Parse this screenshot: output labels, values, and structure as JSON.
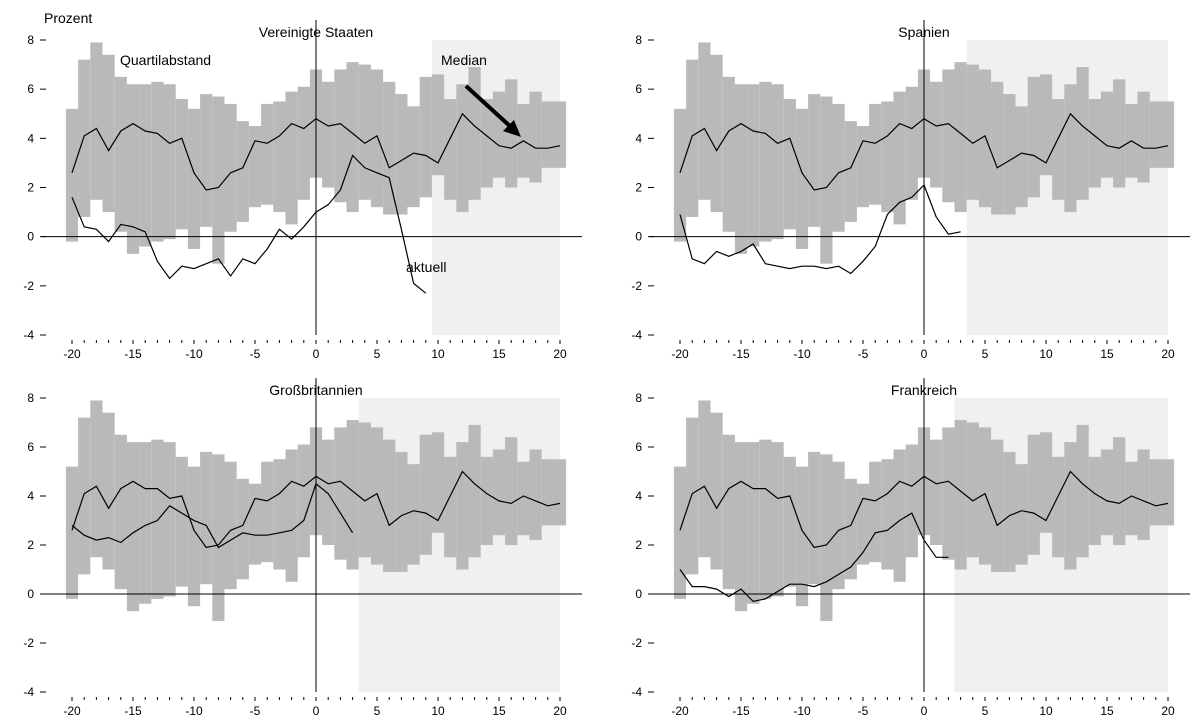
{
  "ylabel": "Prozent",
  "annotations": {
    "quartile": "Quartilabstand",
    "median": "Median",
    "current": "aktuell"
  },
  "colors": {
    "band": "#b9b9b9",
    "shade": "#f0f0f0",
    "line": "#000000"
  },
  "chart_data": [
    {
      "type": "line",
      "title": "Vereinigte Staaten",
      "xlim": [
        -20,
        20
      ],
      "ylim": [
        -4,
        8
      ],
      "x_ticks": [
        -20,
        -15,
        -10,
        -5,
        0,
        5,
        10,
        15,
        20
      ],
      "y_ticks": [
        -4,
        -2,
        0,
        2,
        4,
        6,
        8
      ],
      "shaded_from": 9.5,
      "band_x": [
        -20,
        -19,
        -18,
        -17,
        -16,
        -15,
        -14,
        -13,
        -12,
        -11,
        -10,
        -9,
        -8,
        -7,
        -6,
        -5,
        -4,
        -3,
        -2,
        -1,
        0,
        1,
        2,
        3,
        4,
        5,
        6,
        7,
        8,
        9,
        10,
        11,
        12,
        13,
        14,
        15,
        16,
        17,
        18,
        19,
        20
      ],
      "band_lower": [
        -0.2,
        0.8,
        1.5,
        1.0,
        0.2,
        -0.7,
        -0.4,
        -0.2,
        -0.1,
        0.3,
        -0.5,
        0.4,
        -1.1,
        0.2,
        0.6,
        1.2,
        1.3,
        1.0,
        0.5,
        1.5,
        2.4,
        2.0,
        1.4,
        1.0,
        1.5,
        1.2,
        0.9,
        0.9,
        1.2,
        1.6,
        2.5,
        1.5,
        1.0,
        1.5,
        2.0,
        2.4,
        2.0,
        2.4,
        2.2,
        2.8,
        2.8
      ],
      "band_upper": [
        5.2,
        7.2,
        7.9,
        7.4,
        6.5,
        6.2,
        6.2,
        6.3,
        6.2,
        5.6,
        5.2,
        5.8,
        5.7,
        5.4,
        4.7,
        4.5,
        5.4,
        5.5,
        5.9,
        6.1,
        6.8,
        6.3,
        6.8,
        7.1,
        7.0,
        6.8,
        6.3,
        5.8,
        5.3,
        6.5,
        6.6,
        5.6,
        6.2,
        6.9,
        5.6,
        5.9,
        6.4,
        5.4,
        5.9,
        5.5,
        5.5
      ],
      "series": [
        {
          "name": "Median",
          "x": [
            -20,
            -19,
            -18,
            -17,
            -16,
            -15,
            -14,
            -13,
            -12,
            -11,
            -10,
            -9,
            -8,
            -7,
            -6,
            -5,
            -4,
            -3,
            -2,
            -1,
            0,
            1,
            2,
            3,
            4,
            5,
            6,
            7,
            8,
            9,
            10,
            11,
            12,
            13,
            14,
            15,
            16,
            17,
            18,
            19,
            20
          ],
          "y": [
            2.6,
            4.1,
            4.4,
            3.5,
            4.3,
            4.6,
            4.3,
            4.2,
            3.8,
            4.0,
            2.6,
            1.9,
            2.0,
            2.6,
            2.8,
            3.9,
            3.8,
            4.1,
            4.6,
            4.4,
            4.8,
            4.5,
            4.6,
            4.2,
            3.8,
            4.1,
            2.8,
            3.1,
            3.4,
            3.3,
            3.0,
            4.0,
            5.0,
            4.5,
            4.1,
            3.7,
            3.6,
            3.9,
            3.6,
            3.6,
            3.7
          ]
        },
        {
          "name": "aktuell",
          "x": [
            -20,
            -19,
            -18,
            -17,
            -16,
            -15,
            -14,
            -13,
            -12,
            -11,
            -10,
            -9,
            -8,
            -7,
            -6,
            -5,
            -4,
            -3,
            -2,
            -1,
            0,
            1,
            2,
            3,
            4,
            5,
            6,
            7,
            8,
            9
          ],
          "y": [
            1.6,
            0.4,
            0.3,
            -0.2,
            0.5,
            0.4,
            0.2,
            -1.0,
            -1.7,
            -1.2,
            -1.3,
            -1.1,
            -0.9,
            -1.6,
            -0.9,
            -1.1,
            -0.5,
            0.3,
            -0.1,
            0.4,
            1.0,
            1.3,
            1.9,
            3.3,
            2.8,
            2.6,
            2.4,
            0.3,
            -1.9,
            -2.3
          ]
        }
      ]
    },
    {
      "type": "line",
      "title": "Spanien",
      "xlim": [
        -20,
        20
      ],
      "ylim": [
        -4,
        8
      ],
      "x_ticks": [
        -20,
        -15,
        -10,
        -5,
        0,
        5,
        10,
        15,
        20
      ],
      "y_ticks": [
        -4,
        -2,
        0,
        2,
        4,
        6,
        8
      ],
      "shaded_from": 3.5,
      "band_x": [
        -20,
        -19,
        -18,
        -17,
        -16,
        -15,
        -14,
        -13,
        -12,
        -11,
        -10,
        -9,
        -8,
        -7,
        -6,
        -5,
        -4,
        -3,
        -2,
        -1,
        0,
        1,
        2,
        3,
        4,
        5,
        6,
        7,
        8,
        9,
        10,
        11,
        12,
        13,
        14,
        15,
        16,
        17,
        18,
        19,
        20
      ],
      "band_lower": [
        -0.2,
        0.8,
        1.5,
        1.0,
        0.2,
        -0.7,
        -0.4,
        -0.2,
        -0.1,
        0.3,
        -0.5,
        0.4,
        -1.1,
        0.2,
        0.6,
        1.2,
        1.3,
        1.0,
        0.5,
        1.5,
        2.4,
        2.0,
        1.4,
        1.0,
        1.5,
        1.2,
        0.9,
        0.9,
        1.2,
        1.6,
        2.5,
        1.5,
        1.0,
        1.5,
        2.0,
        2.4,
        2.0,
        2.4,
        2.2,
        2.8,
        2.8
      ],
      "band_upper": [
        5.2,
        7.2,
        7.9,
        7.4,
        6.5,
        6.2,
        6.2,
        6.3,
        6.2,
        5.6,
        5.2,
        5.8,
        5.7,
        5.4,
        4.7,
        4.5,
        5.4,
        5.5,
        5.9,
        6.1,
        6.8,
        6.3,
        6.8,
        7.1,
        7.0,
        6.8,
        6.3,
        5.8,
        5.3,
        6.5,
        6.6,
        5.6,
        6.2,
        6.9,
        5.6,
        5.9,
        6.4,
        5.4,
        5.9,
        5.5,
        5.5
      ],
      "series": [
        {
          "name": "Median",
          "x": [
            -20,
            -19,
            -18,
            -17,
            -16,
            -15,
            -14,
            -13,
            -12,
            -11,
            -10,
            -9,
            -8,
            -7,
            -6,
            -5,
            -4,
            -3,
            -2,
            -1,
            0,
            1,
            2,
            3,
            4,
            5,
            6,
            7,
            8,
            9,
            10,
            11,
            12,
            13,
            14,
            15,
            16,
            17,
            18,
            19,
            20
          ],
          "y": [
            2.6,
            4.1,
            4.4,
            3.5,
            4.3,
            4.6,
            4.3,
            4.2,
            3.8,
            4.0,
            2.6,
            1.9,
            2.0,
            2.6,
            2.8,
            3.9,
            3.8,
            4.1,
            4.6,
            4.4,
            4.8,
            4.5,
            4.6,
            4.2,
            3.8,
            4.1,
            2.8,
            3.1,
            3.4,
            3.3,
            3.0,
            4.0,
            5.0,
            4.5,
            4.1,
            3.7,
            3.6,
            3.9,
            3.6,
            3.6,
            3.7
          ]
        },
        {
          "name": "aktuell",
          "x": [
            -20,
            -19,
            -18,
            -17,
            -16,
            -15,
            -14,
            -13,
            -12,
            -11,
            -10,
            -9,
            -8,
            -7,
            -6,
            -5,
            -4,
            -3,
            -2,
            -1,
            0,
            1,
            2,
            3
          ],
          "y": [
            0.9,
            -0.9,
            -1.1,
            -0.6,
            -0.8,
            -0.6,
            -0.3,
            -1.1,
            -1.2,
            -1.3,
            -1.2,
            -1.2,
            -1.3,
            -1.2,
            -1.5,
            -1.0,
            -0.4,
            0.9,
            1.4,
            1.6,
            2.1,
            0.8,
            0.1,
            0.2
          ]
        }
      ]
    },
    {
      "type": "line",
      "title": "Großbritannien",
      "xlim": [
        -20,
        20
      ],
      "ylim": [
        -4,
        8
      ],
      "x_ticks": [
        -20,
        -15,
        -10,
        -5,
        0,
        5,
        10,
        15,
        20
      ],
      "y_ticks": [
        -4,
        -2,
        0,
        2,
        4,
        6,
        8
      ],
      "shaded_from": 3.5,
      "band_x": [
        -20,
        -19,
        -18,
        -17,
        -16,
        -15,
        -14,
        -13,
        -12,
        -11,
        -10,
        -9,
        -8,
        -7,
        -6,
        -5,
        -4,
        -3,
        -2,
        -1,
        0,
        1,
        2,
        3,
        4,
        5,
        6,
        7,
        8,
        9,
        10,
        11,
        12,
        13,
        14,
        15,
        16,
        17,
        18,
        19,
        20
      ],
      "band_lower": [
        -0.2,
        0.8,
        1.5,
        1.0,
        0.2,
        -0.7,
        -0.4,
        -0.2,
        -0.1,
        0.3,
        -0.5,
        0.4,
        -1.1,
        0.2,
        0.6,
        1.2,
        1.3,
        1.0,
        0.5,
        1.5,
        2.4,
        2.0,
        1.4,
        1.0,
        1.5,
        1.2,
        0.9,
        0.9,
        1.2,
        1.6,
        2.5,
        1.5,
        1.0,
        1.5,
        2.0,
        2.4,
        2.0,
        2.4,
        2.2,
        2.8,
        2.8
      ],
      "band_upper": [
        5.2,
        7.2,
        7.9,
        7.4,
        6.5,
        6.2,
        6.2,
        6.3,
        6.2,
        5.6,
        5.2,
        5.8,
        5.7,
        5.4,
        4.7,
        4.5,
        5.4,
        5.5,
        5.9,
        6.1,
        6.8,
        6.3,
        6.8,
        7.1,
        7.0,
        6.8,
        6.3,
        5.8,
        5.3,
        6.5,
        6.6,
        5.6,
        6.2,
        6.9,
        5.6,
        5.9,
        6.4,
        5.4,
        5.9,
        5.5,
        5.5
      ],
      "series": [
        {
          "name": "Median",
          "x": [
            -20,
            -19,
            -18,
            -17,
            -16,
            -15,
            -14,
            -13,
            -12,
            -11,
            -10,
            -9,
            -8,
            -7,
            -6,
            -5,
            -4,
            -3,
            -2,
            -1,
            0,
            1,
            2,
            3,
            4,
            5,
            6,
            7,
            8,
            9,
            10,
            11,
            12,
            13,
            14,
            15,
            16,
            17,
            18,
            19,
            20
          ],
          "y": [
            2.6,
            4.1,
            4.4,
            3.5,
            4.3,
            4.6,
            4.3,
            4.3,
            3.9,
            4.0,
            2.6,
            1.9,
            2.0,
            2.6,
            2.8,
            3.9,
            3.8,
            4.1,
            4.6,
            4.4,
            4.8,
            4.5,
            4.6,
            4.2,
            3.8,
            4.1,
            2.8,
            3.2,
            3.4,
            3.3,
            3.0,
            4.0,
            5.0,
            4.5,
            4.1,
            3.8,
            3.7,
            4.0,
            3.8,
            3.6,
            3.7
          ]
        },
        {
          "name": "aktuell",
          "x": [
            -20,
            -19,
            -18,
            -17,
            -16,
            -15,
            -14,
            -13,
            -12,
            -11,
            -10,
            -9,
            -8,
            -7,
            -6,
            -5,
            -4,
            -3,
            -2,
            -1,
            0,
            1,
            2,
            3
          ],
          "y": [
            2.8,
            2.4,
            2.2,
            2.3,
            2.1,
            2.5,
            2.8,
            3.0,
            3.6,
            3.3,
            3.0,
            2.8,
            1.9,
            2.2,
            2.5,
            2.4,
            2.4,
            2.5,
            2.6,
            3.0,
            4.5,
            4.1,
            3.3,
            2.5
          ]
        }
      ]
    },
    {
      "type": "line",
      "title": "Frankreich",
      "xlim": [
        -20,
        20
      ],
      "ylim": [
        -4,
        8
      ],
      "x_ticks": [
        -20,
        -15,
        -10,
        -5,
        0,
        5,
        10,
        15,
        20
      ],
      "y_ticks": [
        -4,
        -2,
        0,
        2,
        4,
        6,
        8
      ],
      "shaded_from": 2.5,
      "band_x": [
        -20,
        -19,
        -18,
        -17,
        -16,
        -15,
        -14,
        -13,
        -12,
        -11,
        -10,
        -9,
        -8,
        -7,
        -6,
        -5,
        -4,
        -3,
        -2,
        -1,
        0,
        1,
        2,
        3,
        4,
        5,
        6,
        7,
        8,
        9,
        10,
        11,
        12,
        13,
        14,
        15,
        16,
        17,
        18,
        19,
        20
      ],
      "band_lower": [
        -0.2,
        0.8,
        1.5,
        1.0,
        0.2,
        -0.7,
        -0.4,
        -0.2,
        -0.1,
        0.3,
        -0.5,
        0.4,
        -1.1,
        0.2,
        0.6,
        1.2,
        1.3,
        1.0,
        0.5,
        1.5,
        2.4,
        2.0,
        1.4,
        1.0,
        1.5,
        1.2,
        0.9,
        0.9,
        1.2,
        1.6,
        2.5,
        1.5,
        1.0,
        1.5,
        2.0,
        2.4,
        2.0,
        2.4,
        2.2,
        2.8,
        2.8
      ],
      "band_upper": [
        5.2,
        7.2,
        7.9,
        7.4,
        6.5,
        6.2,
        6.2,
        6.3,
        6.2,
        5.6,
        5.2,
        5.8,
        5.7,
        5.4,
        4.7,
        4.5,
        5.4,
        5.5,
        5.9,
        6.1,
        6.8,
        6.3,
        6.8,
        7.1,
        7.0,
        6.8,
        6.3,
        5.8,
        5.3,
        6.5,
        6.6,
        5.6,
        6.2,
        6.9,
        5.6,
        5.9,
        6.4,
        5.4,
        5.9,
        5.5,
        5.5
      ],
      "series": [
        {
          "name": "Median",
          "x": [
            -20,
            -19,
            -18,
            -17,
            -16,
            -15,
            -14,
            -13,
            -12,
            -11,
            -10,
            -9,
            -8,
            -7,
            -6,
            -5,
            -4,
            -3,
            -2,
            -1,
            0,
            1,
            2,
            3,
            4,
            5,
            6,
            7,
            8,
            9,
            10,
            11,
            12,
            13,
            14,
            15,
            16,
            17,
            18,
            19,
            20
          ],
          "y": [
            2.6,
            4.1,
            4.4,
            3.5,
            4.3,
            4.6,
            4.3,
            4.3,
            3.9,
            4.0,
            2.6,
            1.9,
            2.0,
            2.6,
            2.8,
            3.9,
            3.8,
            4.1,
            4.6,
            4.4,
            4.8,
            4.5,
            4.6,
            4.2,
            3.8,
            4.1,
            2.8,
            3.2,
            3.4,
            3.3,
            3.0,
            4.0,
            5.0,
            4.5,
            4.1,
            3.8,
            3.7,
            4.0,
            3.8,
            3.6,
            3.7
          ]
        },
        {
          "name": "aktuell",
          "x": [
            -20,
            -19,
            -18,
            -17,
            -16,
            -15,
            -14,
            -13,
            -12,
            -11,
            -10,
            -9,
            -8,
            -7,
            -6,
            -5,
            -4,
            -3,
            -2,
            -1,
            0,
            1,
            2
          ],
          "y": [
            1.0,
            0.3,
            0.3,
            0.2,
            -0.1,
            0.2,
            -0.3,
            -0.2,
            0.1,
            0.4,
            0.4,
            0.3,
            0.5,
            0.8,
            1.1,
            1.7,
            2.5,
            2.6,
            3.0,
            3.3,
            2.2,
            1.5,
            1.5
          ]
        }
      ]
    }
  ]
}
